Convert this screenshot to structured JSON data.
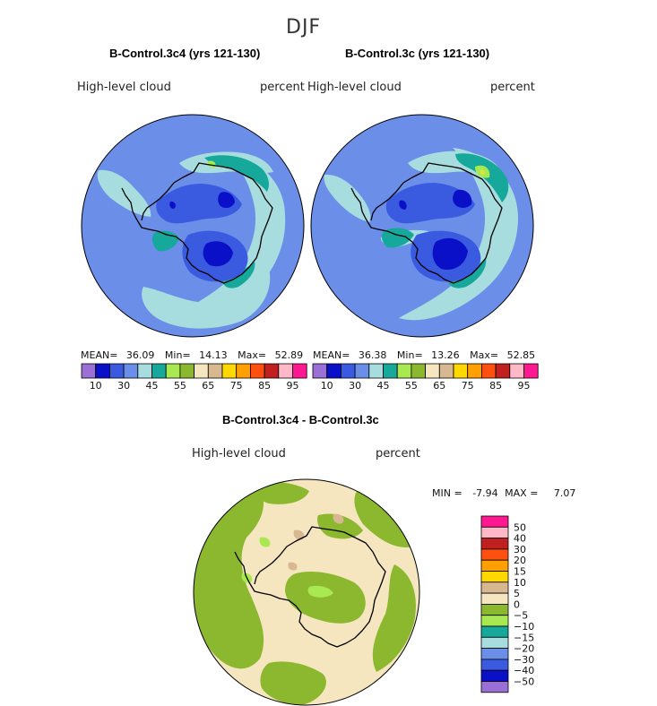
{
  "season_title": "DJF",
  "variable": "High-level cloud",
  "units": "percent",
  "colors": {
    "ocean_base": "#6b8fe8",
    "background": "#ffffff"
  },
  "chart_data": [
    {
      "type": "heatmap",
      "projection": "south-polar-stereographic",
      "title": "B-Control.3c4 (yrs 121-130)",
      "subtitle_left": "High-level cloud",
      "subtitle_right": "percent",
      "stats": {
        "mean_label": "MEAN=",
        "mean": "36.09",
        "min_label": "Min=",
        "min": "14.13",
        "max_label": "Max=",
        "max": "52.89"
      },
      "legend_ticks": [
        "10",
        "30",
        "45",
        "55",
        "65",
        "75",
        "85",
        "95"
      ],
      "legend_colors": [
        "#9a6fd6",
        "#0a10c8",
        "#3a5be0",
        "#6b8fe8",
        "#a8dde0",
        "#16a89a",
        "#a8e850",
        "#8cb830",
        "#f5e6c0",
        "#d8b890",
        "#ffd800",
        "#ffa000",
        "#ff5010",
        "#c02020",
        "#ffb8c8",
        "#ff1890"
      ]
    },
    {
      "type": "heatmap",
      "projection": "south-polar-stereographic",
      "title": "B-Control.3c (yrs 121-130)",
      "subtitle_left": "High-level cloud",
      "subtitle_right": "percent",
      "stats": {
        "mean_label": "MEAN=",
        "mean": "36.38",
        "min_label": "Min=",
        "min": "13.26",
        "max_label": "Max=",
        "max": "52.85"
      },
      "legend_ticks": [
        "10",
        "30",
        "45",
        "55",
        "65",
        "75",
        "85",
        "95"
      ],
      "legend_colors": [
        "#9a6fd6",
        "#0a10c8",
        "#3a5be0",
        "#6b8fe8",
        "#a8dde0",
        "#16a89a",
        "#a8e850",
        "#8cb830",
        "#f5e6c0",
        "#d8b890",
        "#ffd800",
        "#ffa000",
        "#ff5010",
        "#c02020",
        "#ffb8c8",
        "#ff1890"
      ]
    },
    {
      "type": "heatmap",
      "projection": "south-polar-stereographic",
      "title": "B-Control.3c4 - B-Control.3c",
      "subtitle_left": "High-level cloud",
      "subtitle_right": "percent",
      "stats": {
        "min_label": "MIN =",
        "min": "-7.94",
        "max_label": "MAX =",
        "max": "7.07"
      },
      "legend_ticks": [
        "50",
        "40",
        "30",
        "20",
        "15",
        "10",
        "5",
        "0",
        "−5",
        "−10",
        "−15",
        "−20",
        "−30",
        "−40",
        "−50"
      ],
      "legend_colors": [
        "#ff1890",
        "#ffb8c8",
        "#c02020",
        "#ff5010",
        "#ffa000",
        "#ffd800",
        "#d8b890",
        "#f5e6c0",
        "#8cb830",
        "#a8e850",
        "#16a89a",
        "#a8dde0",
        "#6b8fe8",
        "#3a5be0",
        "#0a10c8",
        "#9a6fd6"
      ]
    }
  ]
}
